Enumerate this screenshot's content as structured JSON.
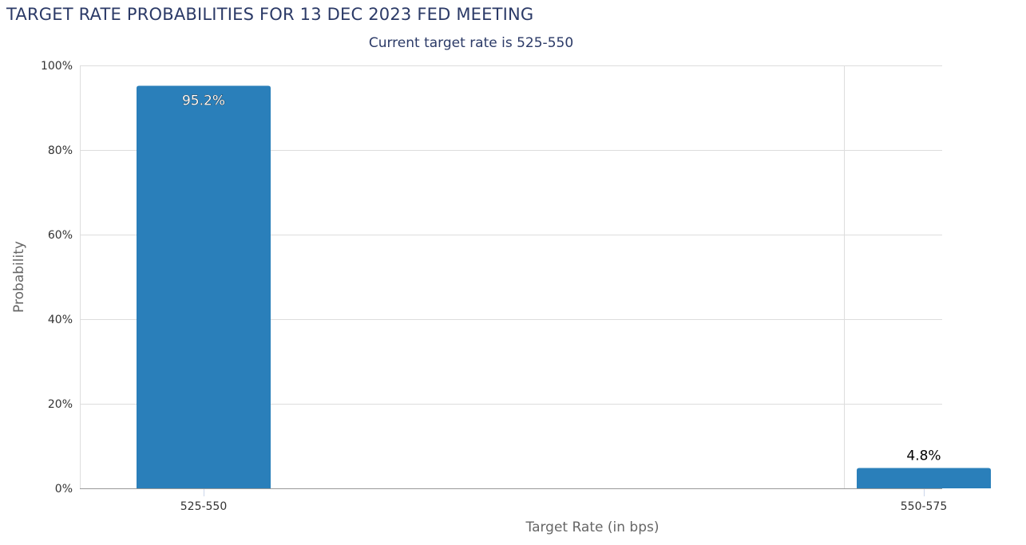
{
  "chart_data": {
    "type": "bar",
    "title": "TARGET RATE PROBABILITIES FOR 13 DEC 2023 FED MEETING",
    "subtitle": "Current target rate is 525-550",
    "xlabel": "Target Rate (in bps)",
    "ylabel": "Probability",
    "categories": [
      "525-550",
      "550-575"
    ],
    "values": [
      95.2,
      4.8
    ],
    "data_labels": [
      "95.2%",
      "4.8%"
    ],
    "ylim": [
      0,
      100
    ],
    "yticks": [
      0,
      20,
      40,
      60,
      80,
      100
    ],
    "ytick_labels": [
      "0%",
      "20%",
      "40%",
      "60%",
      "80%",
      "100%"
    ],
    "grid": true,
    "bar_color": "#2a7fba"
  }
}
